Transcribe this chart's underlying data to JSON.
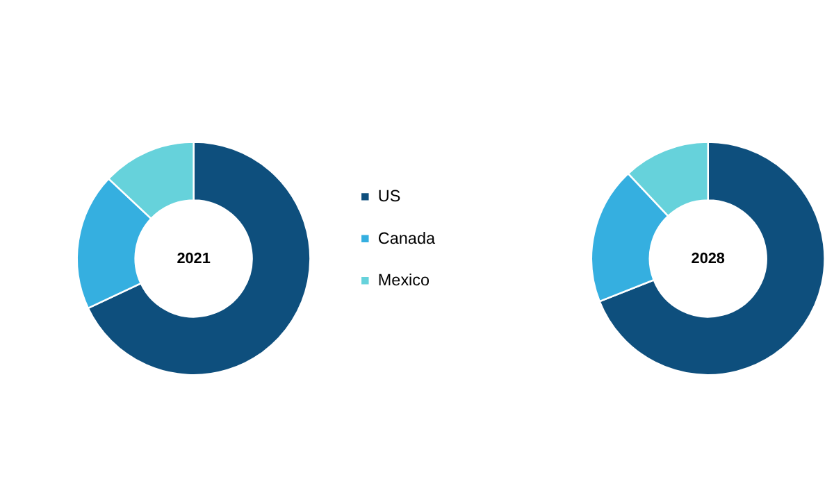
{
  "chart_data": [
    {
      "type": "donut",
      "title": "2021",
      "categories": [
        "US",
        "Canada",
        "Mexico"
      ],
      "values": [
        68,
        19,
        13
      ],
      "colors": [
        "#0e4f7d",
        "#35afe0",
        "#66d2db"
      ],
      "legend": "right"
    },
    {
      "type": "donut",
      "title": "2028",
      "categories": [
        null,
        null,
        null
      ],
      "values": [
        69,
        19,
        12
      ],
      "colors": [
        "#0e4f7d",
        "#35afe0",
        "#66d2db"
      ],
      "legend": false
    }
  ]
}
